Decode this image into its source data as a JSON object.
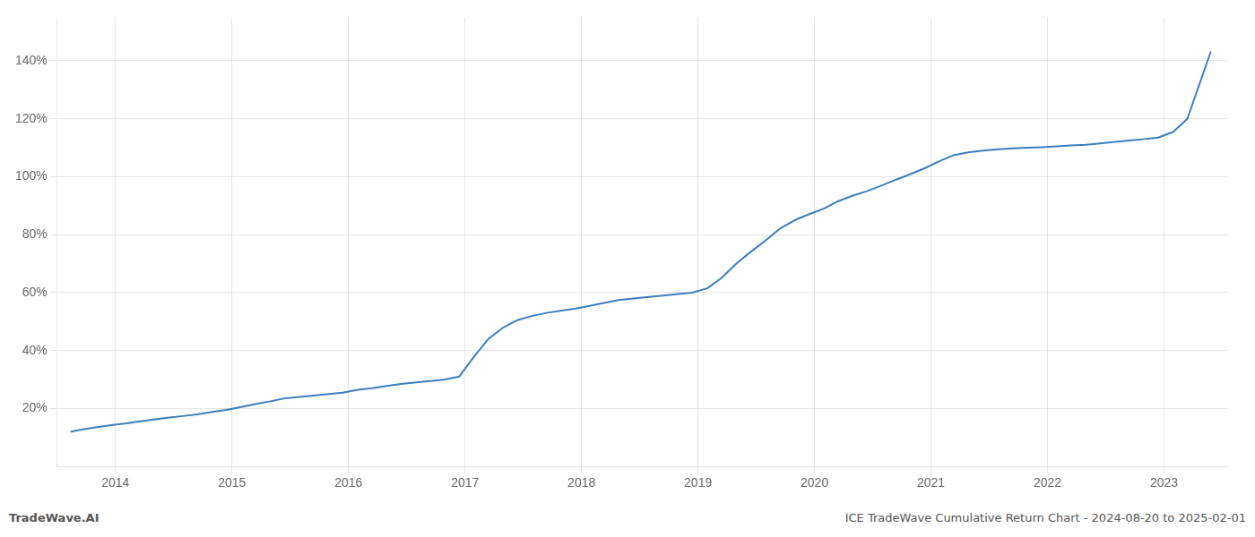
{
  "chart_data": {
    "type": "line",
    "annotations": [
      "TradeWave.AI",
      "ICE TradeWave Cumulative Return Chart - 2024-08-20 to 2025-02-01"
    ],
    "x": [
      2013.62,
      2013.72,
      2013.83,
      2013.95,
      2014.08,
      2014.2,
      2014.33,
      2014.45,
      2014.58,
      2014.7,
      2014.83,
      2014.95,
      2015.08,
      2015.2,
      2015.33,
      2015.45,
      2015.58,
      2015.7,
      2015.83,
      2015.95,
      2016.08,
      2016.2,
      2016.33,
      2016.45,
      2016.58,
      2016.7,
      2016.83,
      2016.95,
      2017.08,
      2017.2,
      2017.33,
      2017.45,
      2017.58,
      2017.7,
      2017.83,
      2017.95,
      2018.08,
      2018.2,
      2018.33,
      2018.45,
      2018.58,
      2018.7,
      2018.83,
      2018.95,
      2019.08,
      2019.2,
      2019.33,
      2019.45,
      2019.58,
      2019.7,
      2019.83,
      2019.95,
      2020.08,
      2020.2,
      2020.33,
      2020.45,
      2020.58,
      2020.7,
      2020.83,
      2020.95,
      2021.08,
      2021.2,
      2021.33,
      2021.45,
      2021.58,
      2021.7,
      2021.83,
      2021.95,
      2022.08,
      2022.2,
      2022.33,
      2022.45,
      2022.58,
      2022.7,
      2022.83,
      2022.95,
      2023.08,
      2023.2,
      2023.4
    ],
    "values": [
      12.0,
      12.8,
      13.5,
      14.2,
      14.8,
      15.5,
      16.2,
      16.8,
      17.4,
      18.0,
      18.8,
      19.5,
      20.5,
      21.5,
      22.5,
      23.5,
      24.0,
      24.5,
      25.0,
      25.5,
      26.5,
      27.0,
      27.8,
      28.5,
      29.0,
      29.5,
      30.0,
      31.0,
      38.0,
      44.0,
      48.0,
      50.5,
      52.0,
      53.0,
      53.8,
      54.5,
      55.5,
      56.5,
      57.5,
      58.0,
      58.5,
      59.0,
      59.5,
      60.0,
      61.5,
      65.0,
      70.0,
      74.0,
      78.0,
      82.0,
      85.0,
      87.0,
      89.0,
      91.5,
      93.5,
      95.0,
      97.0,
      99.0,
      101.0,
      103.0,
      105.5,
      107.5,
      108.5,
      109.0,
      109.5,
      109.8,
      110.0,
      110.2,
      110.5,
      110.8,
      111.0,
      111.5,
      112.0,
      112.5,
      113.0,
      113.5,
      115.5,
      120.0,
      143.0
    ],
    "color": "#3a7ebf",
    "xlim": [
      2013.5,
      2023.55
    ],
    "xticks": [
      2014,
      2015,
      2016,
      2017,
      2018,
      2019,
      2020,
      2021,
      2022,
      2023
    ],
    "ylim": [
      0,
      155
    ],
    "yticks": [
      {
        "value": 20,
        "label": "20%"
      },
      {
        "value": 40,
        "label": "40%"
      },
      {
        "value": 60,
        "label": "60%"
      },
      {
        "value": 80,
        "label": "80%"
      },
      {
        "value": 100,
        "label": "100%"
      },
      {
        "value": 120,
        "label": "120%"
      },
      {
        "value": 140,
        "label": "140%"
      }
    ],
    "grid": true
  }
}
